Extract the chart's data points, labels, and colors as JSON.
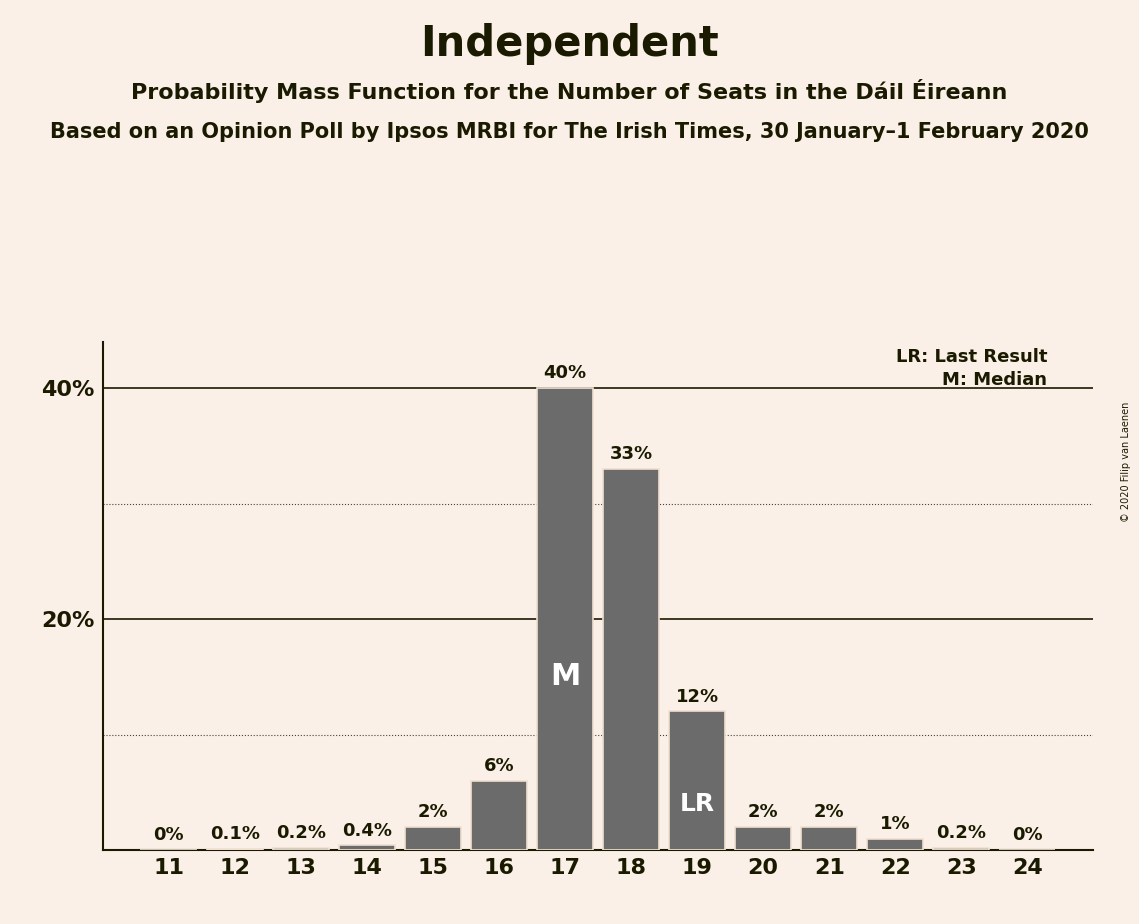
{
  "title": "Independent",
  "subtitle1": "Probability Mass Function for the Number of Seats in the Dáil Éireann",
  "subtitle2": "Based on an Opinion Poll by Ipsos MRBI for The Irish Times, 30 January–1 February 2020",
  "copyright": "© 2020 Filip van Laenen",
  "seats": [
    11,
    12,
    13,
    14,
    15,
    16,
    17,
    18,
    19,
    20,
    21,
    22,
    23,
    24
  ],
  "probabilities": [
    0.0,
    0.1,
    0.2,
    0.4,
    2.0,
    6.0,
    40.0,
    33.0,
    12.0,
    2.0,
    2.0,
    1.0,
    0.2,
    0.0
  ],
  "bar_color": "#6b6b6b",
  "bar_edge_color": "#f0e0d0",
  "background_color": "#faf0e8",
  "text_color": "#1a1a00",
  "median_seat": 17,
  "last_result_seat": 19,
  "ylim_max": 44,
  "legend_lr": "LR: Last Result",
  "legend_m": "M: Median",
  "title_fontsize": 30,
  "subtitle1_fontsize": 16,
  "subtitle2_fontsize": 15,
  "tick_fontsize": 16,
  "label_fontsize": 13,
  "m_label_fontsize": 22,
  "lr_label_fontsize": 18,
  "legend_fontsize": 13
}
